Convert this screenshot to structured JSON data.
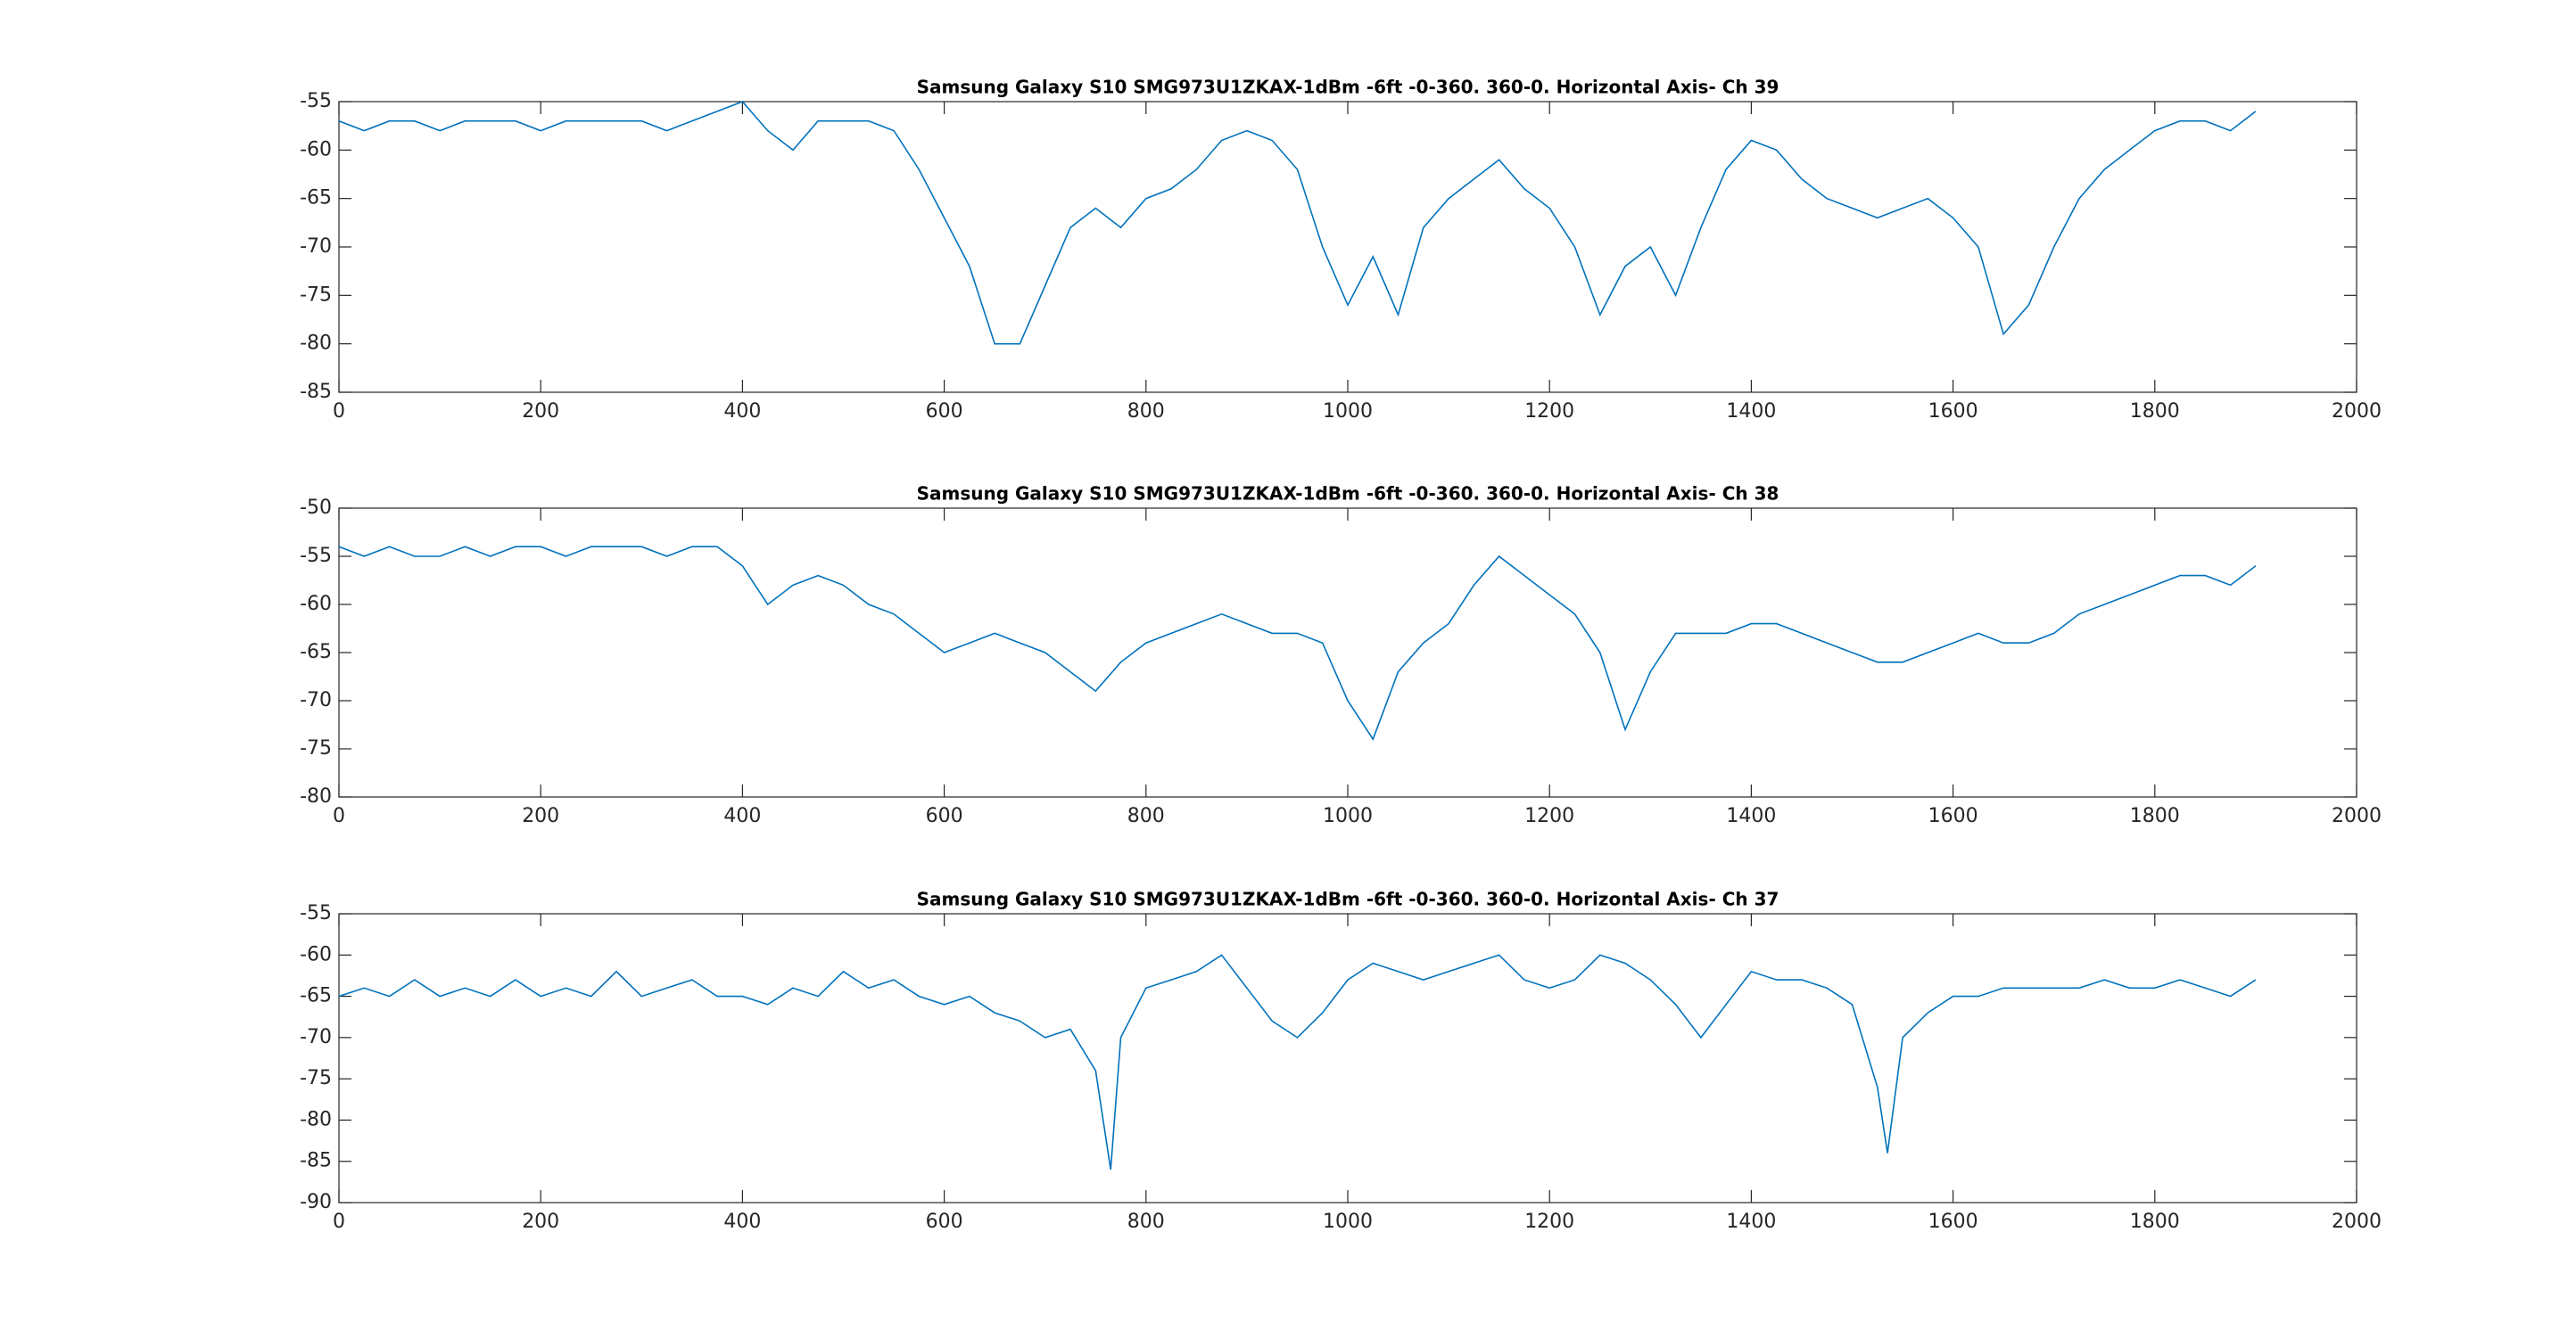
{
  "chart_data": [
    {
      "type": "line",
      "title": "Samsung Galaxy S10 SMG973U1ZKAX-1dBm -6ft -0-360. 360-0. Horizontal Axis- Ch 39",
      "color": "#0072bd",
      "grid": false,
      "x": [
        0,
        25,
        50,
        75,
        100,
        125,
        150,
        175,
        200,
        225,
        250,
        275,
        300,
        325,
        350,
        375,
        400,
        425,
        450,
        475,
        500,
        525,
        550,
        575,
        600,
        625,
        650,
        675,
        700,
        725,
        750,
        775,
        800,
        825,
        850,
        875,
        900,
        925,
        950,
        975,
        1000,
        1025,
        1050,
        1075,
        1100,
        1125,
        1150,
        1175,
        1200,
        1225,
        1250,
        1275,
        1300,
        1325,
        1350,
        1375,
        1400,
        1425,
        1450,
        1475,
        1500,
        1525,
        1550,
        1575,
        1600,
        1625,
        1650,
        1675,
        1700,
        1725,
        1750,
        1775,
        1800,
        1825,
        1850,
        1875,
        1900
      ],
      "values": [
        -57,
        -58,
        -57,
        -57,
        -58,
        -57,
        -57,
        -57,
        -58,
        -57,
        -57,
        -57,
        -57,
        -58,
        -57,
        -56,
        -55,
        -58,
        -60,
        -57,
        -57,
        -57,
        -58,
        -62,
        -67,
        -72,
        -80,
        -80,
        -74,
        -68,
        -66,
        -68,
        -65,
        -64,
        -62,
        -59,
        -58,
        -59,
        -62,
        -70,
        -76,
        -71,
        -77,
        -68,
        -65,
        -63,
        -61,
        -64,
        -66,
        -70,
        -77,
        -72,
        -70,
        -75,
        -68,
        -62,
        -59,
        -60,
        -63,
        -65,
        -66,
        -67,
        -66,
        -65,
        -67,
        -70,
        -79,
        -76,
        -70,
        -65,
        -62,
        -60,
        -58,
        -57,
        -57,
        -58,
        -56
      ],
      "xlim": [
        0,
        2000
      ],
      "xticks": [
        0,
        200,
        400,
        600,
        800,
        1000,
        1200,
        1400,
        1600,
        1800,
        2000
      ],
      "ylim": [
        -85,
        -55
      ],
      "yticks": [
        -85,
        -80,
        -75,
        -70,
        -65,
        -60,
        -55
      ]
    },
    {
      "type": "line",
      "title": "Samsung Galaxy S10 SMG973U1ZKAX-1dBm -6ft -0-360. 360-0. Horizontal Axis- Ch 38",
      "color": "#0072bd",
      "grid": false,
      "x": [
        0,
        25,
        50,
        75,
        100,
        125,
        150,
        175,
        200,
        225,
        250,
        275,
        300,
        325,
        350,
        375,
        400,
        425,
        450,
        475,
        500,
        525,
        550,
        575,
        600,
        625,
        650,
        675,
        700,
        725,
        750,
        775,
        800,
        825,
        850,
        875,
        900,
        925,
        950,
        975,
        1000,
        1025,
        1050,
        1075,
        1100,
        1125,
        1150,
        1175,
        1200,
        1225,
        1250,
        1275,
        1300,
        1325,
        1350,
        1375,
        1400,
        1425,
        1450,
        1475,
        1500,
        1525,
        1550,
        1575,
        1600,
        1625,
        1650,
        1675,
        1700,
        1725,
        1750,
        1775,
        1800,
        1825,
        1850,
        1875,
        1900
      ],
      "values": [
        -54,
        -55,
        -54,
        -55,
        -55,
        -54,
        -55,
        -54,
        -54,
        -55,
        -54,
        -54,
        -54,
        -55,
        -54,
        -54,
        -56,
        -60,
        -58,
        -57,
        -58,
        -60,
        -61,
        -63,
        -65,
        -64,
        -63,
        -64,
        -65,
        -67,
        -69,
        -66,
        -64,
        -63,
        -62,
        -61,
        -62,
        -63,
        -63,
        -64,
        -70,
        -74,
        -67,
        -64,
        -62,
        -58,
        -55,
        -57,
        -59,
        -61,
        -65,
        -73,
        -67,
        -63,
        -63,
        -63,
        -62,
        -62,
        -63,
        -64,
        -65,
        -66,
        -66,
        -65,
        -64,
        -63,
        -64,
        -64,
        -63,
        -61,
        -60,
        -59,
        -58,
        -57,
        -57,
        -58,
        -56
      ],
      "xlim": [
        0,
        2000
      ],
      "xticks": [
        0,
        200,
        400,
        600,
        800,
        1000,
        1200,
        1400,
        1600,
        1800,
        2000
      ],
      "ylim": [
        -80,
        -50
      ],
      "yticks": [
        -80,
        -75,
        -70,
        -65,
        -60,
        -55,
        -50
      ]
    },
    {
      "type": "line",
      "title": "Samsung Galaxy S10 SMG973U1ZKAX-1dBm -6ft -0-360. 360-0. Horizontal Axis- Ch 37",
      "color": "#0072bd",
      "grid": false,
      "x": [
        0,
        25,
        50,
        75,
        100,
        125,
        150,
        175,
        200,
        225,
        250,
        275,
        300,
        325,
        350,
        375,
        400,
        425,
        450,
        475,
        500,
        525,
        550,
        575,
        600,
        625,
        650,
        675,
        700,
        725,
        750,
        765,
        775,
        800,
        825,
        850,
        875,
        900,
        925,
        950,
        975,
        1000,
        1025,
        1050,
        1075,
        1100,
        1125,
        1150,
        1175,
        1200,
        1225,
        1250,
        1275,
        1300,
        1325,
        1350,
        1375,
        1400,
        1425,
        1450,
        1475,
        1500,
        1525,
        1535,
        1550,
        1575,
        1600,
        1625,
        1650,
        1675,
        1700,
        1725,
        1750,
        1775,
        1800,
        1825,
        1850,
        1875,
        1900
      ],
      "values": [
        -65,
        -64,
        -65,
        -63,
        -65,
        -64,
        -65,
        -63,
        -65,
        -64,
        -65,
        -62,
        -65,
        -64,
        -63,
        -65,
        -65,
        -66,
        -64,
        -65,
        -62,
        -64,
        -63,
        -65,
        -66,
        -65,
        -67,
        -68,
        -70,
        -69,
        -74,
        -86,
        -70,
        -64,
        -63,
        -62,
        -60,
        -64,
        -68,
        -70,
        -67,
        -63,
        -61,
        -62,
        -63,
        -62,
        -61,
        -60,
        -63,
        -64,
        -63,
        -60,
        -61,
        -63,
        -66,
        -70,
        -66,
        -62,
        -63,
        -63,
        -64,
        -66,
        -76,
        -84,
        -70,
        -67,
        -65,
        -65,
        -64,
        -64,
        -64,
        -64,
        -63,
        -64,
        -64,
        -63,
        -64,
        -65,
        -63
      ],
      "xlim": [
        0,
        2000
      ],
      "xticks": [
        0,
        200,
        400,
        600,
        800,
        1000,
        1200,
        1400,
        1600,
        1800,
        2000
      ],
      "ylim": [
        -90,
        -55
      ],
      "yticks": [
        -90,
        -85,
        -80,
        -75,
        -70,
        -65,
        -60,
        -55
      ]
    }
  ]
}
